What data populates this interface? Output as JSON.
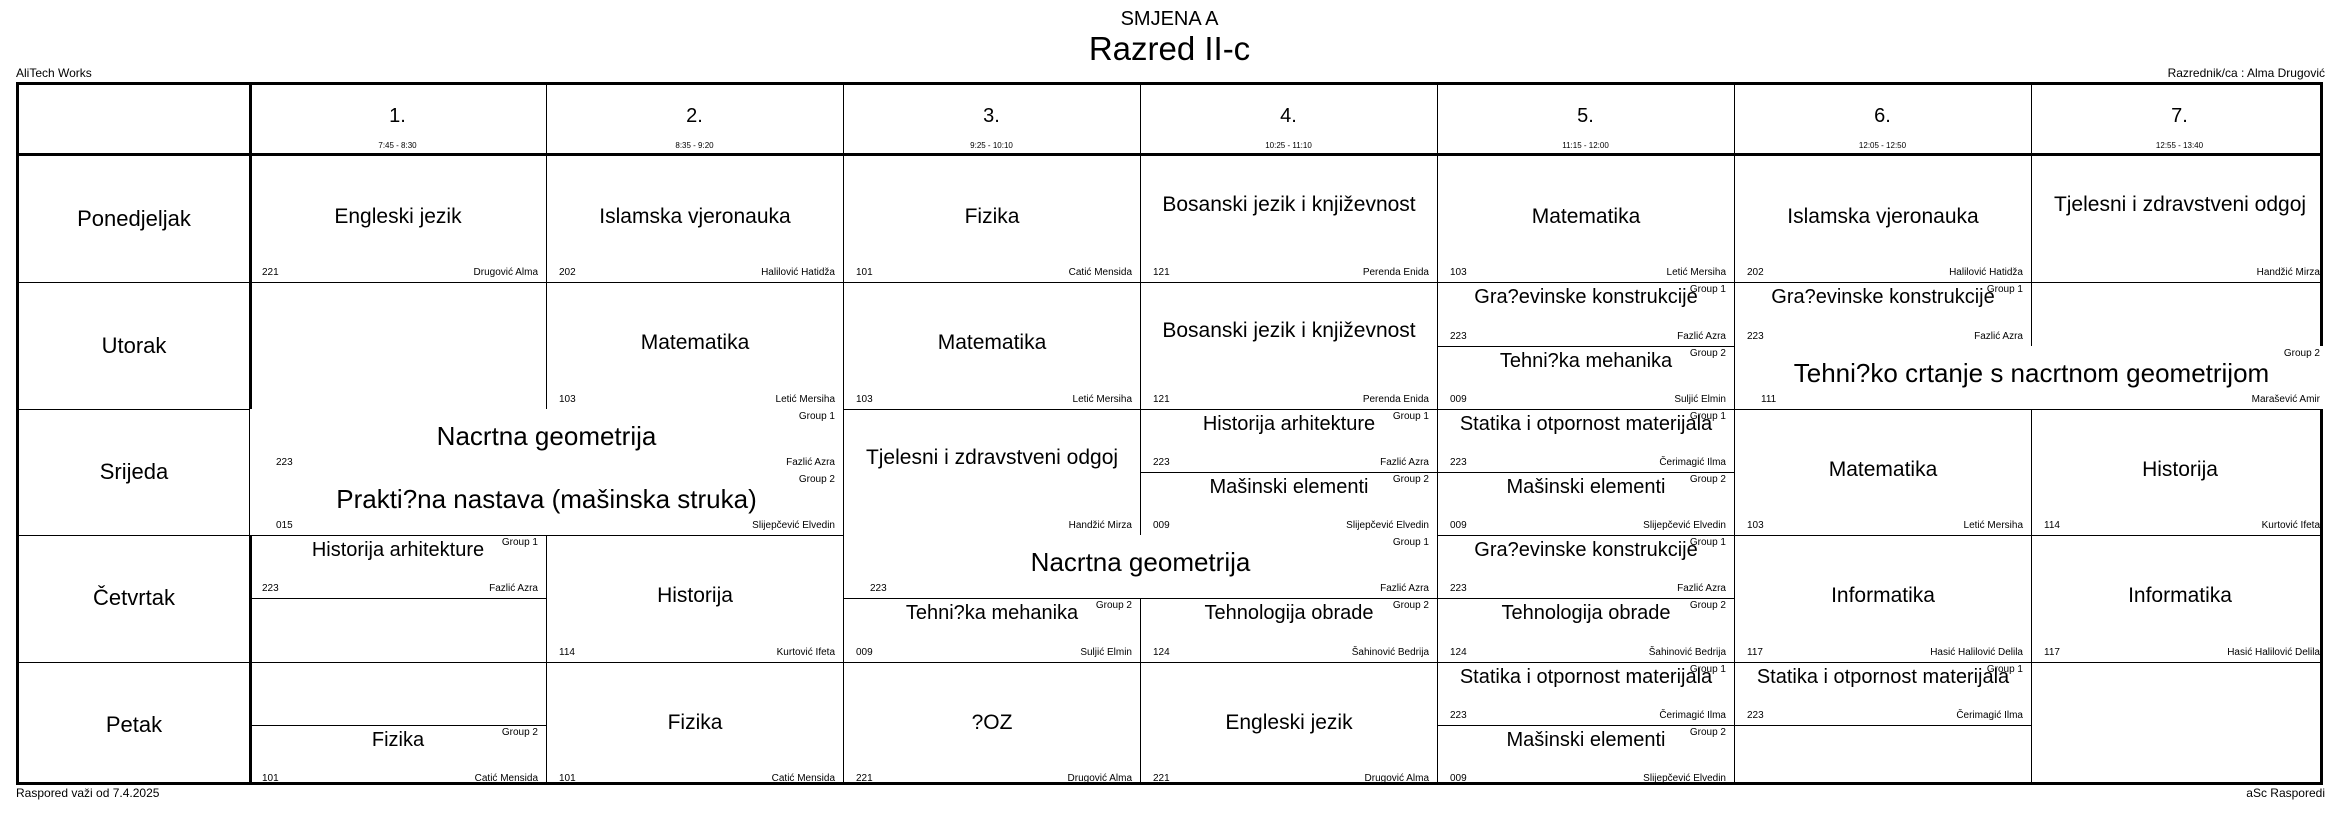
{
  "header": {
    "shift": "SMJENA A",
    "class_name": "Razred II-c",
    "school": "AliTech Works",
    "class_teacher": "Razrednik/ca : Alma Drugović"
  },
  "footer": {
    "valid_from": "Raspored važi od 7.4.2025",
    "software": "aSc Rasporedi"
  },
  "periods": [
    {
      "label": "1.",
      "time": "7:45 - 8:30"
    },
    {
      "label": "2.",
      "time": "8:35 - 9:20"
    },
    {
      "label": "3.",
      "time": "9:25 - 10:10"
    },
    {
      "label": "4.",
      "time": "10:25 - 11:10"
    },
    {
      "label": "5.",
      "time": "11:15 - 12:00"
    },
    {
      "label": "6.",
      "time": "12:05 - 12:50"
    },
    {
      "label": "7.",
      "time": "12:55 - 13:40"
    }
  ],
  "days": [
    "Ponedjeljak",
    "Utorak",
    "Srijeda",
    "Četvrtak",
    "Petak"
  ],
  "lessons": [
    {
      "day": 0,
      "p": 0,
      "span": 1,
      "half": "full",
      "subject": "Engleski jezik",
      "room": "221",
      "teacher": "Drugović Alma",
      "group": ""
    },
    {
      "day": 0,
      "p": 1,
      "span": 1,
      "half": "full",
      "subject": "Islamska vjeronauka",
      "room": "202",
      "teacher": "Halilović Hatidža",
      "group": ""
    },
    {
      "day": 0,
      "p": 2,
      "span": 1,
      "half": "full",
      "subject": "Fizika",
      "room": "101",
      "teacher": "Catić Mensida",
      "group": ""
    },
    {
      "day": 0,
      "p": 3,
      "span": 1,
      "half": "full",
      "subject": "Bosanski jezik i književnost",
      "room": "121",
      "teacher": "Perenda Enida",
      "group": ""
    },
    {
      "day": 0,
      "p": 4,
      "span": 1,
      "half": "full",
      "subject": "Matematika",
      "room": "103",
      "teacher": "Letić Mersiha",
      "group": ""
    },
    {
      "day": 0,
      "p": 5,
      "span": 1,
      "half": "full",
      "subject": "Islamska vjeronauka",
      "room": "202",
      "teacher": "Halilović Hatidža",
      "group": ""
    },
    {
      "day": 0,
      "p": 6,
      "span": 1,
      "half": "full",
      "subject": "Tjelesni i zdravstveni odgoj",
      "room": "",
      "teacher": "Handžić Mirza",
      "group": ""
    },
    {
      "day": 1,
      "p": 1,
      "span": 1,
      "half": "full",
      "subject": "Matematika",
      "room": "103",
      "teacher": "Letić Mersiha",
      "group": ""
    },
    {
      "day": 1,
      "p": 2,
      "span": 1,
      "half": "full",
      "subject": "Matematika",
      "room": "103",
      "teacher": "Letić Mersiha",
      "group": ""
    },
    {
      "day": 1,
      "p": 3,
      "span": 1,
      "half": "full",
      "subject": "Bosanski jezik i književnost",
      "room": "121",
      "teacher": "Perenda Enida",
      "group": ""
    },
    {
      "day": 1,
      "p": 4,
      "span": 1,
      "half": "top",
      "subject": "Gra?evinske konstrukcije",
      "room": "223",
      "teacher": "Fazlić Azra",
      "group": "Group 1"
    },
    {
      "day": 1,
      "p": 4,
      "span": 1,
      "half": "bottom",
      "subject": "Tehni?ka mehanika",
      "room": "009",
      "teacher": "Suljić Elmin",
      "group": "Group 2"
    },
    {
      "day": 1,
      "p": 5,
      "span": 1,
      "half": "top",
      "subject": "Gra?evinske konstrukcije",
      "room": "223",
      "teacher": "Fazlić Azra",
      "group": "Group 1"
    },
    {
      "day": 1,
      "p": 5,
      "span": 2,
      "half": "bottom",
      "subject": "Tehni?ko crtanje s nacrtnom geometrijom",
      "room": "111",
      "teacher": "Marašević Amir",
      "group": "Group 2"
    },
    {
      "day": 2,
      "p": 0,
      "span": 2,
      "half": "top",
      "subject": "Nacrtna geometrija",
      "room": "223",
      "teacher": "Fazlić Azra",
      "group": "Group 1"
    },
    {
      "day": 2,
      "p": 0,
      "span": 2,
      "half": "bottom",
      "subject": "Prakti?na nastava (mašinska struka)",
      "room": "015",
      "teacher": "Slijepčević Elvedin",
      "group": "Group 2"
    },
    {
      "day": 2,
      "p": 2,
      "span": 1,
      "half": "full",
      "subject": "Tjelesni i zdravstveni odgoj",
      "room": "",
      "teacher": "Handžić Mirza",
      "group": ""
    },
    {
      "day": 2,
      "p": 3,
      "span": 1,
      "half": "top",
      "subject": "Historija arhitekture",
      "room": "223",
      "teacher": "Fazlić Azra",
      "group": "Group 1"
    },
    {
      "day": 2,
      "p": 3,
      "span": 1,
      "half": "bottom",
      "subject": "Mašinski elementi",
      "room": "009",
      "teacher": "Slijepčević Elvedin",
      "group": "Group 2"
    },
    {
      "day": 2,
      "p": 4,
      "span": 1,
      "half": "top",
      "subject": "Statika i otpornost materijala",
      "room": "223",
      "teacher": "Čerimagić Ilma",
      "group": "Group 1"
    },
    {
      "day": 2,
      "p": 4,
      "span": 1,
      "half": "bottom",
      "subject": "Mašinski elementi",
      "room": "009",
      "teacher": "Slijepčević Elvedin",
      "group": "Group 2"
    },
    {
      "day": 2,
      "p": 5,
      "span": 1,
      "half": "full",
      "subject": "Matematika",
      "room": "103",
      "teacher": "Letić Mersiha",
      "group": ""
    },
    {
      "day": 2,
      "p": 6,
      "span": 1,
      "half": "full",
      "subject": "Historija",
      "room": "114",
      "teacher": "Kurtović Ifeta",
      "group": ""
    },
    {
      "day": 3,
      "p": 0,
      "span": 1,
      "half": "top",
      "subject": "Historija arhitekture",
      "room": "223",
      "teacher": "Fazlić Azra",
      "group": "Group 1"
    },
    {
      "day": 3,
      "p": 1,
      "span": 1,
      "half": "full",
      "subject": "Historija",
      "room": "114",
      "teacher": "Kurtović Ifeta",
      "group": ""
    },
    {
      "day": 3,
      "p": 2,
      "span": 2,
      "half": "top",
      "subject": "Nacrtna geometrija",
      "room": "223",
      "teacher": "Fazlić Azra",
      "group": "Group 1"
    },
    {
      "day": 3,
      "p": 2,
      "span": 1,
      "half": "bottom",
      "subject": "Tehni?ka mehanika",
      "room": "009",
      "teacher": "Suljić Elmin",
      "group": "Group 2"
    },
    {
      "day": 3,
      "p": 3,
      "span": 1,
      "half": "bottom",
      "subject": "Tehnologija obrade",
      "room": "124",
      "teacher": "Šahinović Bedrija",
      "group": "Group 2"
    },
    {
      "day": 3,
      "p": 4,
      "span": 1,
      "half": "top",
      "subject": "Gra?evinske konstrukcije",
      "room": "223",
      "teacher": "Fazlić Azra",
      "group": "Group 1"
    },
    {
      "day": 3,
      "p": 4,
      "span": 1,
      "half": "bottom",
      "subject": "Tehnologija obrade",
      "room": "124",
      "teacher": "Šahinović Bedrija",
      "group": "Group 2"
    },
    {
      "day": 3,
      "p": 5,
      "span": 1,
      "half": "full",
      "subject": "Informatika",
      "room": "117",
      "teacher": "Hasić Halilović Delila",
      "group": ""
    },
    {
      "day": 3,
      "p": 6,
      "span": 1,
      "half": "full",
      "subject": "Informatika",
      "room": "117",
      "teacher": "Hasić Halilović Delila",
      "group": ""
    },
    {
      "day": 4,
      "p": 0,
      "span": 1,
      "half": "bottom",
      "subject": "Fizika",
      "room": "101",
      "teacher": "Catić Mensida",
      "group": "Group 2"
    },
    {
      "day": 4,
      "p": 1,
      "span": 1,
      "half": "full",
      "subject": "Fizika",
      "room": "101",
      "teacher": "Catić Mensida",
      "group": ""
    },
    {
      "day": 4,
      "p": 2,
      "span": 1,
      "half": "full",
      "subject": "?OZ",
      "room": "221",
      "teacher": "Drugović Alma",
      "group": ""
    },
    {
      "day": 4,
      "p": 3,
      "span": 1,
      "half": "full",
      "subject": "Engleski jezik",
      "room": "221",
      "teacher": "Drugović Alma",
      "group": ""
    },
    {
      "day": 4,
      "p": 4,
      "span": 1,
      "half": "top",
      "subject": "Statika i otpornost materijala",
      "room": "223",
      "teacher": "Čerimagić Ilma",
      "group": "Group 1"
    },
    {
      "day": 4,
      "p": 4,
      "span": 1,
      "half": "bottom",
      "subject": "Mašinski elementi",
      "room": "009",
      "teacher": "Slijepčević Elvedin",
      "group": "Group 2"
    },
    {
      "day": 4,
      "p": 5,
      "span": 1,
      "half": "top",
      "subject": "Statika i otpornost materijala",
      "room": "223",
      "teacher": "Čerimagić Ilma",
      "group": "Group 1"
    }
  ]
}
